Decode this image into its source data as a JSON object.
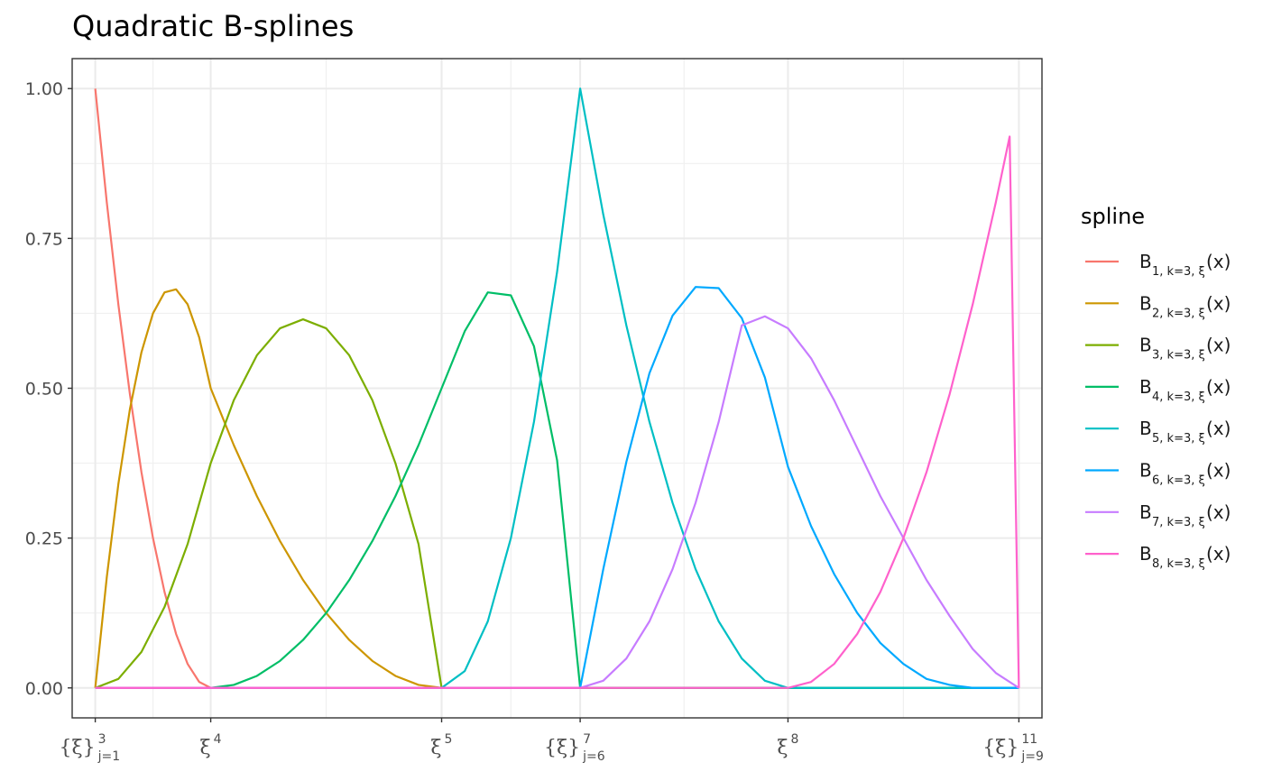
{
  "chart_data": {
    "type": "line",
    "title": "Quadratic B-splines",
    "xlabel": "",
    "ylabel": "",
    "xlim": [
      -0.1,
      4.1
    ],
    "ylim": [
      -0.05,
      1.05
    ],
    "grid": true,
    "theme": "bw",
    "legend": {
      "title": "spline",
      "placement": "right"
    },
    "y_ticks": [
      {
        "value": 0.0,
        "label": "0.00"
      },
      {
        "value": 0.25,
        "label": "0.25"
      },
      {
        "value": 0.5,
        "label": "0.50"
      },
      {
        "value": 0.75,
        "label": "0.75"
      },
      {
        "value": 1.0,
        "label": "1.00"
      }
    ],
    "x_ticks": [
      {
        "value": 0.0,
        "main": "{ξ}",
        "sub": "j=1",
        "sup": "3"
      },
      {
        "value": 0.5,
        "main": "ξ",
        "sub": "",
        "sup": "4"
      },
      {
        "value": 1.5,
        "main": "ξ",
        "sub": "",
        "sup": "5"
      },
      {
        "value": 2.1,
        "main": "{ξ}",
        "sub": "j=6",
        "sup": "7"
      },
      {
        "value": 3.0,
        "main": "ξ",
        "sub": "",
        "sup": "8"
      },
      {
        "value": 4.0,
        "main": "{ξ}",
        "sub": "j=9",
        "sup": "11"
      }
    ],
    "series": [
      {
        "name": "B",
        "index": "1",
        "subscript": "1, k=3, ξ",
        "suffix": "(x)",
        "color": "#F8766D",
        "x": [
          0.0,
          0.05,
          0.1,
          0.15,
          0.2,
          0.25,
          0.3,
          0.35,
          0.4,
          0.45,
          0.5,
          4.0
        ],
        "y": [
          1.0,
          0.81,
          0.64,
          0.49,
          0.36,
          0.25,
          0.16,
          0.09,
          0.04,
          0.01,
          0.0,
          0.0
        ]
      },
      {
        "name": "B",
        "index": "2",
        "subscript": "2, k=3, ξ",
        "suffix": "(x)",
        "color": "#CD9600",
        "x": [
          0.0,
          0.05,
          0.1,
          0.15,
          0.2,
          0.25,
          0.3,
          0.35,
          0.4,
          0.45,
          0.5,
          0.6,
          0.7,
          0.8,
          0.9,
          1.0,
          1.1,
          1.2,
          1.3,
          1.4,
          1.5,
          4.0
        ],
        "y": [
          0.0,
          0.185,
          0.34,
          0.465,
          0.56,
          0.625,
          0.66,
          0.665,
          0.64,
          0.585,
          0.5,
          0.405,
          0.32,
          0.245,
          0.18,
          0.125,
          0.08,
          0.045,
          0.02,
          0.005,
          0.0,
          0.0
        ]
      },
      {
        "name": "B",
        "index": "3",
        "subscript": "3, k=3, ξ",
        "suffix": "(x)",
        "color": "#7CAE00",
        "x": [
          0.0,
          0.1,
          0.2,
          0.3,
          0.4,
          0.5,
          0.6,
          0.7,
          0.8,
          0.9,
          1.0,
          1.1,
          1.2,
          1.3,
          1.4,
          1.5,
          1.6,
          1.7,
          1.8,
          1.9,
          2.0,
          2.1,
          4.0
        ],
        "y": [
          0.0,
          0.015,
          0.06,
          0.135,
          0.24,
          0.375,
          0.48,
          0.555,
          0.6,
          0.615,
          0.6,
          0.555,
          0.48,
          0.375,
          0.24,
          0.0,
          0.0,
          0.0,
          0.0,
          0.0,
          0.0,
          0.0,
          0.0
        ]
      },
      {
        "name": "B",
        "index": "4",
        "subscript": "4, k=3, ξ",
        "suffix": "(x)",
        "color": "#00BE67",
        "x": [
          0.0,
          0.5,
          0.6,
          0.7,
          0.8,
          0.9,
          1.0,
          1.1,
          1.2,
          1.3,
          1.4,
          1.5,
          1.6,
          1.7,
          1.8,
          1.9,
          2.0,
          2.1,
          4.0
        ],
        "y": [
          0.0,
          0.0,
          0.005,
          0.02,
          0.045,
          0.08,
          0.125,
          0.18,
          0.245,
          0.32,
          0.405,
          0.5,
          0.595,
          0.66,
          0.655,
          0.57,
          0.38,
          0.0,
          0.0
        ]
      },
      {
        "name": "B",
        "index": "5",
        "subscript": "5, k=3, ξ",
        "suffix": "(x)",
        "color": "#00BFC4",
        "x": [
          0.0,
          1.5,
          1.6,
          1.7,
          1.8,
          1.9,
          2.0,
          2.1,
          2.2,
          2.3,
          2.4,
          2.5,
          2.6,
          2.7,
          2.8,
          2.9,
          3.0,
          4.0
        ],
        "y": [
          0.0,
          0.0,
          0.028,
          0.111,
          0.25,
          0.444,
          0.694,
          1.0,
          0.79,
          0.605,
          0.444,
          0.309,
          0.198,
          0.111,
          0.049,
          0.012,
          0.0,
          0.0
        ]
      },
      {
        "name": "B",
        "index": "6",
        "subscript": "6, k=3, ξ",
        "suffix": "(x)",
        "color": "#00A9FF",
        "x": [
          0.0,
          2.1,
          2.2,
          2.3,
          2.4,
          2.5,
          2.6,
          2.7,
          2.8,
          2.9,
          3.0,
          3.1,
          3.2,
          3.3,
          3.4,
          3.5,
          3.6,
          3.7,
          3.8,
          3.9,
          4.0
        ],
        "y": [
          0.0,
          0.0,
          0.198,
          0.377,
          0.525,
          0.621,
          0.669,
          0.667,
          0.617,
          0.518,
          0.369,
          0.27,
          0.19,
          0.125,
          0.075,
          0.04,
          0.015,
          0.005,
          0.0,
          0.0,
          0.0
        ]
      },
      {
        "name": "B",
        "index": "7",
        "subscript": "7, k=3, ξ",
        "suffix": "(x)",
        "color": "#C77CFF",
        "x": [
          0.0,
          2.1,
          2.2,
          2.3,
          2.4,
          2.5,
          2.6,
          2.7,
          2.8,
          2.9,
          3.0,
          3.1,
          3.2,
          3.3,
          3.4,
          3.5,
          3.6,
          3.7,
          3.8,
          3.9,
          4.0
        ],
        "y": [
          0.0,
          0.0,
          0.012,
          0.049,
          0.111,
          0.198,
          0.309,
          0.444,
          0.605,
          0.62,
          0.6,
          0.55,
          0.48,
          0.4,
          0.32,
          0.25,
          0.18,
          0.12,
          0.065,
          0.025,
          0.0
        ]
      },
      {
        "name": "B",
        "index": "8",
        "subscript": "8, k=3, ξ",
        "suffix": "(x)",
        "color": "#FF61CC",
        "x": [
          0.0,
          3.0,
          3.1,
          3.2,
          3.3,
          3.4,
          3.5,
          3.6,
          3.7,
          3.8,
          3.9,
          3.96,
          4.0
        ],
        "y": [
          0.0,
          0.0,
          0.01,
          0.04,
          0.09,
          0.16,
          0.25,
          0.36,
          0.49,
          0.64,
          0.81,
          0.92,
          0.0
        ]
      }
    ]
  }
}
